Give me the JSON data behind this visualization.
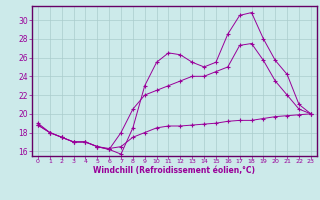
{
  "xlabel": "Windchill (Refroidissement éolien,°C)",
  "bg_color": "#cceaea",
  "line_color": "#990099",
  "grid_color": "#aacccc",
  "border_color": "#660066",
  "xlim": [
    -0.5,
    23.5
  ],
  "ylim": [
    15.5,
    31.5
  ],
  "yticks": [
    16,
    18,
    20,
    22,
    24,
    26,
    28,
    30
  ],
  "xticks": [
    0,
    1,
    2,
    3,
    4,
    5,
    6,
    7,
    8,
    9,
    10,
    11,
    12,
    13,
    14,
    15,
    16,
    17,
    18,
    19,
    20,
    21,
    22,
    23
  ],
  "series": [
    {
      "x": [
        0,
        1,
        2,
        3,
        4,
        5,
        6,
        7,
        8,
        9,
        10,
        11,
        12,
        13,
        14,
        15,
        16,
        17,
        18,
        19,
        20,
        21,
        22,
        23
      ],
      "y": [
        19.0,
        18.0,
        17.5,
        17.0,
        17.0,
        16.5,
        16.2,
        15.7,
        18.5,
        23.0,
        25.5,
        26.5,
        26.3,
        25.5,
        25.0,
        25.5,
        28.5,
        30.5,
        30.8,
        28.0,
        25.7,
        24.2,
        21.0,
        20.0
      ]
    },
    {
      "x": [
        0,
        1,
        2,
        3,
        4,
        5,
        6,
        7,
        8,
        9,
        10,
        11,
        12,
        13,
        14,
        15,
        16,
        17,
        18,
        19,
        20,
        21,
        22,
        23
      ],
      "y": [
        18.8,
        18.0,
        17.5,
        17.0,
        17.0,
        16.5,
        16.2,
        18.0,
        20.5,
        22.0,
        22.5,
        23.0,
        23.5,
        24.0,
        24.0,
        24.5,
        25.0,
        27.3,
        27.5,
        25.7,
        23.5,
        22.0,
        20.5,
        20.0
      ]
    },
    {
      "x": [
        0,
        1,
        2,
        3,
        4,
        5,
        6,
        7,
        8,
        9,
        10,
        11,
        12,
        13,
        14,
        15,
        16,
        17,
        18,
        19,
        20,
        21,
        22,
        23
      ],
      "y": [
        18.8,
        18.0,
        17.5,
        17.0,
        17.0,
        16.5,
        16.3,
        16.5,
        17.5,
        18.0,
        18.5,
        18.7,
        18.7,
        18.8,
        18.9,
        19.0,
        19.2,
        19.3,
        19.3,
        19.5,
        19.7,
        19.8,
        19.9,
        20.0
      ]
    }
  ]
}
